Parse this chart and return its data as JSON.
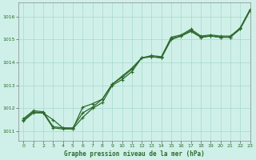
{
  "title": "Graphe pression niveau de la mer (hPa)",
  "background_color": "#cff0e8",
  "grid_color": "#a8d8ce",
  "line_color": "#2d6a2d",
  "xlim": [
    -0.5,
    23
  ],
  "ylim": [
    1010.6,
    1016.6
  ],
  "yticks": [
    1011,
    1012,
    1013,
    1014,
    1015,
    1016
  ],
  "xticks": [
    0,
    1,
    2,
    3,
    4,
    5,
    6,
    7,
    8,
    9,
    10,
    11,
    12,
    13,
    14,
    15,
    16,
    17,
    18,
    19,
    20,
    21,
    22,
    23
  ],
  "series1_x": [
    0,
    1,
    2,
    3,
    4,
    5,
    6,
    7,
    8,
    9,
    10,
    11,
    12,
    13,
    14,
    15,
    16,
    17,
    18,
    19,
    20,
    21,
    22,
    23
  ],
  "series1_y": [
    1011.55,
    1011.9,
    1011.85,
    1011.2,
    1011.15,
    1011.15,
    1011.8,
    1012.05,
    1012.4,
    1013.05,
    1013.4,
    1013.75,
    1014.2,
    1014.3,
    1014.25,
    1015.1,
    1015.2,
    1015.45,
    1015.15,
    1015.2,
    1015.15,
    1015.15,
    1015.5,
    1016.3
  ],
  "series2_x": [
    0,
    1,
    2,
    3,
    4,
    5,
    6,
    7,
    8,
    9,
    10,
    11,
    12,
    13,
    14,
    15,
    16,
    17,
    18,
    19,
    20,
    21,
    22,
    23
  ],
  "series2_y": [
    1011.5,
    1011.85,
    1011.8,
    1011.15,
    1011.1,
    1011.1,
    1011.6,
    1012.0,
    1012.25,
    1013.0,
    1013.25,
    1013.6,
    1014.2,
    1014.25,
    1014.2,
    1015.0,
    1015.15,
    1015.35,
    1015.1,
    1015.15,
    1015.1,
    1015.1,
    1015.45,
    1016.25
  ],
  "series3_x": [
    0,
    1,
    2,
    3,
    4,
    5,
    6,
    7,
    8,
    9,
    10,
    11,
    12,
    13,
    14,
    15,
    16,
    17,
    18,
    19,
    20,
    21,
    22,
    23
  ],
  "series3_y": [
    1011.45,
    1011.8,
    1011.8,
    1011.5,
    1011.15,
    1011.1,
    1012.05,
    1012.2,
    1012.4,
    1013.05,
    1013.35,
    1013.7,
    1014.2,
    1014.25,
    1014.2,
    1015.05,
    1015.15,
    1015.4,
    1015.1,
    1015.15,
    1015.1,
    1015.1,
    1015.5,
    1016.3
  ]
}
